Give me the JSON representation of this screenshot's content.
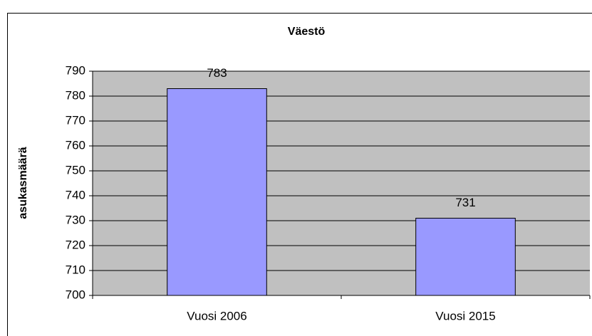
{
  "chart_data": {
    "type": "bar",
    "title": "Väestö",
    "y_label": "asukasmäärä",
    "categories": [
      "Vuosi 2006",
      "Vuosi 2015"
    ],
    "values": [
      783,
      731
    ],
    "color": "#9999ff",
    "ylim": [
      700,
      790
    ],
    "yticks": [
      700,
      710,
      720,
      730,
      740,
      750,
      760,
      770,
      780,
      790
    ],
    "grid": true
  }
}
